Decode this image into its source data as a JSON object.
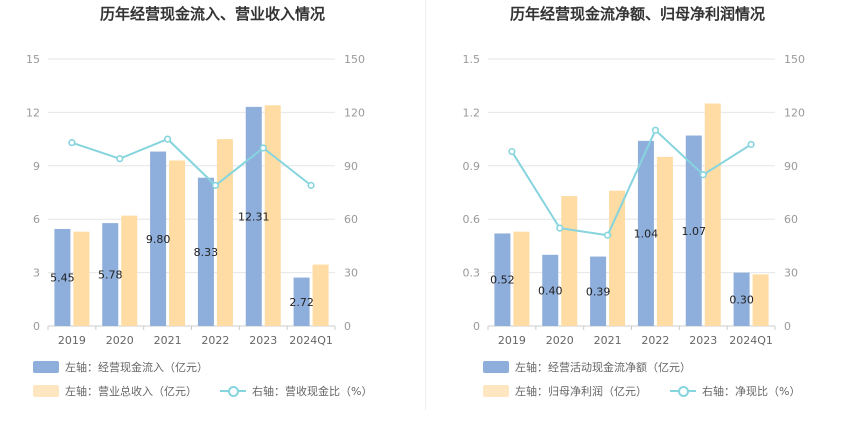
{
  "colors": {
    "bar_left": "#8eaedc",
    "bar_right": "#fedca3",
    "line": "#86d4de"
  },
  "panels": [
    {
      "title": "历年经营现金流入、营业收入情况",
      "legend": {
        "bar_left": "左轴：经营现金流入（亿元）",
        "bar_right": "左轴：营业总收入（亿元）",
        "line": "右轴：营收现金比（%）"
      }
    },
    {
      "title": "历年经营现金流净额、归母净利润情况",
      "legend": {
        "bar_left": "左轴：经营活动现金流净额（亿元）",
        "bar_right": "左轴：归母净利润（亿元）",
        "line": "右轴：净现比（%）"
      }
    }
  ],
  "chart_data": [
    {
      "type": "bar",
      "title": "历年经营现金流入、营业收入情况",
      "categories": [
        "2019",
        "2020",
        "2021",
        "2022",
        "2023",
        "2024Q1"
      ],
      "y_left": {
        "ticks": [
          0,
          3,
          6,
          9,
          12,
          15
        ],
        "ylim": [
          0,
          15
        ]
      },
      "y_right": {
        "ticks": [
          0,
          30,
          60,
          90,
          120,
          150
        ],
        "ylim": [
          0,
          150
        ]
      },
      "series": [
        {
          "name": "左轴：经营现金流入（亿元）",
          "type": "bar",
          "axis": "left",
          "values": [
            5.45,
            5.78,
            9.8,
            8.33,
            12.31,
            2.72
          ],
          "labels": [
            "5.45",
            "5.78",
            "9.80",
            "8.33",
            "12.31",
            "2.72"
          ]
        },
        {
          "name": "左轴：营业总收入（亿元）",
          "type": "bar",
          "axis": "left",
          "values": [
            5.3,
            6.2,
            9.3,
            10.5,
            12.4,
            3.45
          ]
        },
        {
          "name": "右轴：营收现金比（%）",
          "type": "line",
          "axis": "right",
          "values": [
            103,
            94,
            105,
            79,
            100,
            79
          ]
        }
      ],
      "grid": true,
      "legend_position": "bottom"
    },
    {
      "type": "bar",
      "title": "历年经营现金流净额、归母净利润情况",
      "categories": [
        "2019",
        "2020",
        "2021",
        "2022",
        "2023",
        "2024Q1"
      ],
      "y_left": {
        "ticks": [
          0,
          0.3,
          0.6,
          0.9,
          1.2,
          1.5
        ],
        "ylim": [
          0,
          1.5
        ]
      },
      "y_right": {
        "ticks": [
          0,
          30,
          60,
          90,
          120,
          150
        ],
        "ylim": [
          0,
          150
        ]
      },
      "series": [
        {
          "name": "左轴：经营活动现金流净额（亿元）",
          "type": "bar",
          "axis": "left",
          "values": [
            0.52,
            0.4,
            0.39,
            1.04,
            1.07,
            0.3
          ],
          "labels": [
            "0.52",
            "0.40",
            "0.39",
            "1.04",
            "1.07",
            "0.30"
          ]
        },
        {
          "name": "左轴：归母净利润（亿元）",
          "type": "bar",
          "axis": "left",
          "values": [
            0.53,
            0.73,
            0.76,
            0.95,
            1.25,
            0.29
          ]
        },
        {
          "name": "右轴：净现比（%）",
          "type": "line",
          "axis": "right",
          "values": [
            98,
            55,
            51,
            110,
            85,
            102
          ]
        }
      ],
      "grid": true,
      "legend_position": "bottom"
    }
  ]
}
